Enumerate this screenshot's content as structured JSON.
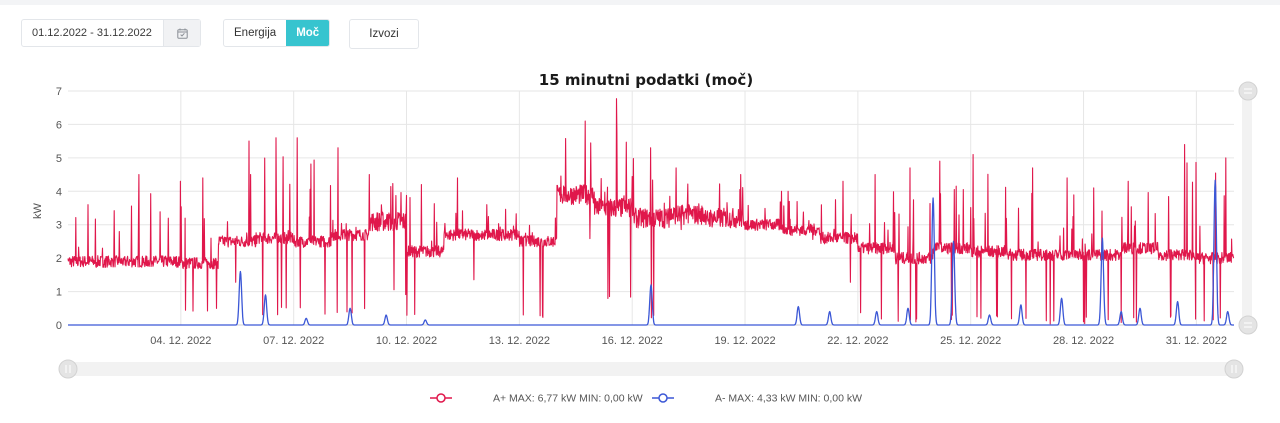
{
  "controls": {
    "date_range": "01.12.2022 - 31.12.2022",
    "calendar_icon": "calendar-icon",
    "modes": [
      {
        "label": "Energija",
        "active": false
      },
      {
        "label": "Moč",
        "active": true
      }
    ],
    "export_label": "Izvozi"
  },
  "colors": {
    "a_plus": "#e0174b",
    "a_minus": "#3b57d6",
    "accent": "#37c4cf",
    "grid": "#e6e6e6"
  },
  "chart_data": {
    "type": "line",
    "title": "15 minutni podatki (moč)",
    "ylabel": "kW",
    "ylim": [
      0,
      7
    ],
    "xlim": [
      "01.12.2022",
      "01.01.2023"
    ],
    "yticks": [
      0,
      1,
      2,
      3,
      4,
      5,
      6,
      7
    ],
    "xtick_labels": [
      "04. 12. 2022",
      "07. 12. 2022",
      "10. 12. 2022",
      "13. 12. 2022",
      "16. 12. 2022",
      "19. 12. 2022",
      "22. 12. 2022",
      "25. 12. 2022",
      "28. 12. 2022",
      "31. 12. 2022"
    ],
    "grid": true,
    "legend_position": "bottom",
    "series": [
      {
        "name": "A+",
        "legend": "A+ MAX: 6,77 kW MIN: 0,00 kW",
        "color": "#e0174b",
        "x": [
          "01.12.2022",
          "02.12.2022",
          "03.12.2022",
          "04.12.2022",
          "05.12.2022",
          "06.12.2022",
          "07.12.2022",
          "08.12.2022",
          "09.12.2022",
          "10.12.2022",
          "11.12.2022",
          "12.12.2022",
          "13.12.2022",
          "14.12.2022",
          "15.12.2022",
          "16.12.2022",
          "17.12.2022",
          "18.12.2022",
          "19.12.2022",
          "20.12.2022",
          "21.12.2022",
          "22.12.2022",
          "23.12.2022",
          "24.12.2022",
          "25.12.2022",
          "26.12.2022",
          "27.12.2022",
          "28.12.2022",
          "29.12.2022",
          "30.12.2022",
          "31.12.2022"
        ],
        "daily_base": [
          1.9,
          1.9,
          1.9,
          1.85,
          2.5,
          2.6,
          2.5,
          2.7,
          3.1,
          2.2,
          2.7,
          2.7,
          2.5,
          3.9,
          3.5,
          3.2,
          3.3,
          3.2,
          3.0,
          2.85,
          2.6,
          2.3,
          2.0,
          2.3,
          2.2,
          2.1,
          2.1,
          2.1,
          2.3,
          2.1,
          2.0
        ],
        "daily_max": [
          3.6,
          4.5,
          4.3,
          4.4,
          5.5,
          5.6,
          5.6,
          5.3,
          4.5,
          4.2,
          4.4,
          3.6,
          3.2,
          6.1,
          6.77,
          5.3,
          4.7,
          4.5,
          4.0,
          4.0,
          4.3,
          4.5,
          4.7,
          4.9,
          5.1,
          4.7,
          4.4,
          4.1,
          4.3,
          5.4,
          5.0
        ],
        "daily_min": [
          1.7,
          1.7,
          1.6,
          0.2,
          1.2,
          0.3,
          0.3,
          0.2,
          0.8,
          0.1,
          1.1,
          1.4,
          0.2,
          2.5,
          0.7,
          0.1,
          2.7,
          2.7,
          2.6,
          2.4,
          1.0,
          0.1,
          0.0,
          0.0,
          0.0,
          0.0,
          0.0,
          0.0,
          0.0,
          0.1,
          0.0
        ]
      },
      {
        "name": "A-",
        "legend": "A- MAX: 4,33 kW MIN: 0,00 kW",
        "color": "#3b57d6",
        "peaks": [
          {
            "x": "05.12.2022 14:00",
            "y": 1.6
          },
          {
            "x": "06.12.2022 06:00",
            "y": 0.9
          },
          {
            "x": "07.12.2022 08:00",
            "y": 0.2
          },
          {
            "x": "08.12.2022 12:00",
            "y": 0.5
          },
          {
            "x": "09.12.2022 11:00",
            "y": 0.3
          },
          {
            "x": "10.12.2022 12:00",
            "y": 0.15
          },
          {
            "x": "16.12.2022 12:00",
            "y": 1.2
          },
          {
            "x": "20.12.2022 10:00",
            "y": 0.55
          },
          {
            "x": "21.12.2022 06:00",
            "y": 0.4
          },
          {
            "x": "22.12.2022 12:00",
            "y": 0.4
          },
          {
            "x": "23.12.2022 08:00",
            "y": 0.5
          },
          {
            "x": "24.12.2022 00:00",
            "y": 3.8
          },
          {
            "x": "24.12.2022 13:00",
            "y": 2.5
          },
          {
            "x": "25.12.2022 12:00",
            "y": 0.3
          },
          {
            "x": "26.12.2022 08:00",
            "y": 0.6
          },
          {
            "x": "27.12.2022 10:00",
            "y": 0.8
          },
          {
            "x": "28.12.2022 12:00",
            "y": 2.6
          },
          {
            "x": "29.12.2022 00:00",
            "y": 0.4
          },
          {
            "x": "29.12.2022 12:00",
            "y": 0.5
          },
          {
            "x": "30.12.2022 12:00",
            "y": 0.7
          },
          {
            "x": "31.12.2022 12:00",
            "y": 4.33
          },
          {
            "x": "31.12.2022 20:00",
            "y": 0.4
          }
        ]
      }
    ]
  }
}
